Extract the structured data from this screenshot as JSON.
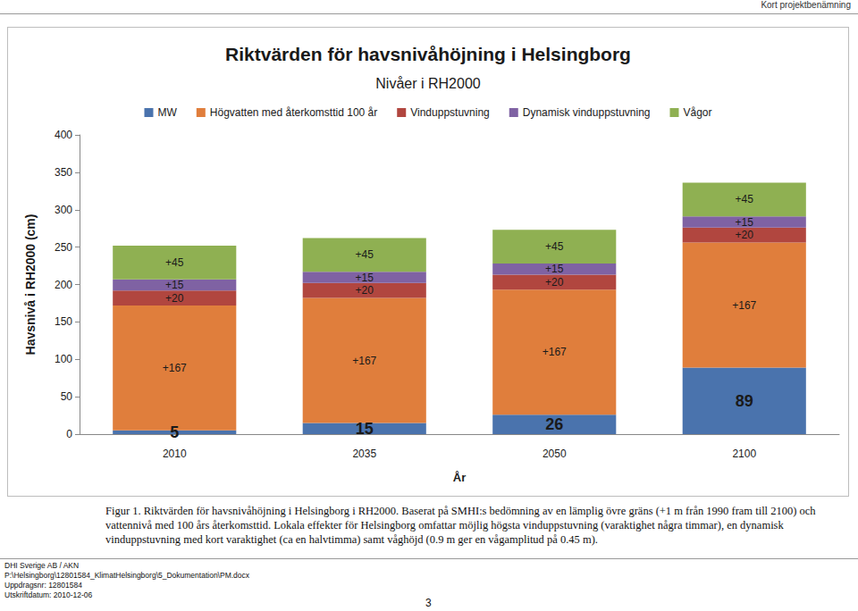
{
  "chart_data": {
    "type": "bar",
    "title": "Riktvärden för havsnivåhöjning i Helsingborg",
    "subtitle": "Nivåer i RH2000",
    "x_label": "År",
    "y_label": "Havsnivå i RH2000 (cm)",
    "categories": [
      "2010",
      "2035",
      "2050",
      "2100"
    ],
    "stacked": true,
    "data_labels": true,
    "grid": false,
    "legend": "top",
    "ylim": [
      0,
      400
    ],
    "yticks": [
      0,
      50,
      100,
      150,
      200,
      250,
      300,
      350,
      400
    ],
    "series": [
      {
        "name": "MW",
        "color": "#4a73ad",
        "values": [
          5,
          15,
          26,
          89
        ]
      },
      {
        "name": "Högvatten med återkomsttid 100 år",
        "color": "#e07e3c",
        "values": [
          167,
          167,
          167,
          167
        ],
        "value_labels": [
          "+167",
          "+167",
          "+167",
          "+167"
        ]
      },
      {
        "name": "Vinduppstuvning",
        "color": "#b1463f",
        "values": [
          20,
          20,
          20,
          20
        ],
        "value_labels": [
          "+20",
          "+20",
          "+20",
          "+20"
        ]
      },
      {
        "name": "Dynamisk vinduppstuvning",
        "color": "#7f62a3",
        "values": [
          15,
          15,
          15,
          15
        ],
        "value_labels": [
          "+15",
          "+15",
          "+15",
          "+15"
        ]
      },
      {
        "name": "Vågor",
        "color": "#8fb052",
        "values": [
          45,
          45,
          45,
          45
        ],
        "value_labels": [
          "+45",
          "+45",
          "+45",
          "+45"
        ]
      }
    ]
  },
  "document": {
    "header": "Kort projektbenämning",
    "caption": "Figur 1. Riktvärden för havsnivåhöjning i Helsingborg i RH2000. Baserat på SMHI:s bedömning av en lämplig övre gräns (+1 m från 1990 fram till 2100) och vattennivå med 100 års återkomsttid. Lokala effekter för Helsingborg omfattar möjlig högsta vinduppstuvning (varaktighet några timmar), en dynamisk vinduppstuvning med kort varaktighet (ca en halvtimma) samt våghöjd (0.9 m ger en vågamplitud på 0.45 m).",
    "footer": [
      "DHI Sverige AB / AKN",
      "P:\\Helsingborg\\12801584_KlimatHelsingborg\\5_Dokumentation\\PM.docx",
      "Uppdragsnr: 12801584",
      "Utskriftdatum: 2010-12-06"
    ],
    "page_number": 3
  }
}
